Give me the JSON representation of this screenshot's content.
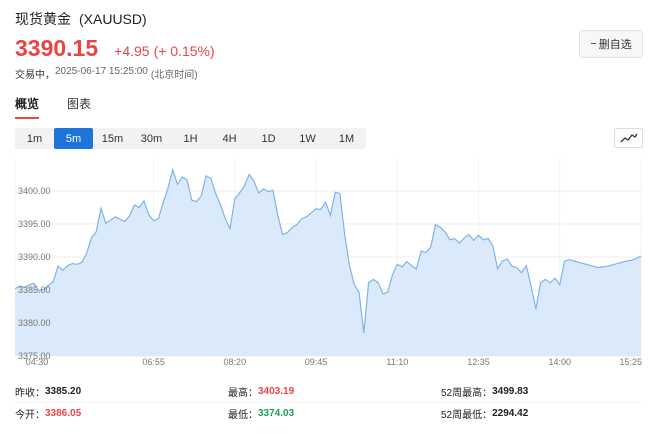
{
  "header": {
    "name": "现货黄金",
    "code": "(XAUUSD)",
    "price": "3390.15",
    "change": "+4.95",
    "change_pct": "(+ 0.15%)",
    "status": "交易中，",
    "timestamp": "2025-06-17 15:25:00",
    "timezone": "(北京时间)",
    "watch_button": "删自选",
    "watch_button_icon": "minus-icon"
  },
  "tabs": [
    {
      "label": "概览",
      "active": true
    },
    {
      "label": "图表",
      "active": false
    }
  ],
  "periods": [
    {
      "label": "1m",
      "active": false
    },
    {
      "label": "5m",
      "active": true
    },
    {
      "label": "15m",
      "active": false
    },
    {
      "label": "30m",
      "active": false
    },
    {
      "label": "1H",
      "active": false
    },
    {
      "label": "4H",
      "active": false
    },
    {
      "label": "1D",
      "active": false
    },
    {
      "label": "1W",
      "active": false
    },
    {
      "label": "1M",
      "active": false
    }
  ],
  "chart_type_icon": "line-chart-icon",
  "colors": {
    "up": "#e84545",
    "down": "#1f9e55",
    "accent": "#1e74d9",
    "line": "#7eb4e8",
    "fill": "#dbeafa"
  },
  "chart_data": {
    "type": "area",
    "ylim": [
      3375,
      3405
    ],
    "y_ticks": [
      "3400.00",
      "3395.00",
      "3390.00",
      "3385.00",
      "3380.00",
      "3375.00"
    ],
    "x_ticks": [
      "04:30",
      "06:55",
      "08:20",
      "09:45",
      "11:10",
      "12:35",
      "14:00",
      "15:25"
    ],
    "grid": true,
    "x": [
      "04:30",
      "04:35",
      "04:40",
      "04:45",
      "04:50",
      "04:55",
      "05:00",
      "05:05",
      "05:10",
      "05:15",
      "05:20",
      "05:25",
      "05:30",
      "05:35",
      "05:40",
      "05:45",
      "05:50",
      "05:55",
      "06:00",
      "06:05",
      "06:10",
      "06:15",
      "06:20",
      "06:25",
      "06:30",
      "06:35",
      "06:40",
      "06:45",
      "06:50",
      "06:55",
      "07:00",
      "07:05",
      "07:10",
      "07:15",
      "07:20",
      "07:25",
      "07:30",
      "07:35",
      "07:40",
      "07:45",
      "07:50",
      "07:55",
      "08:00",
      "08:05",
      "08:10",
      "08:15",
      "08:20",
      "08:25",
      "08:30",
      "08:35",
      "08:40",
      "08:45",
      "08:50",
      "08:55",
      "09:00",
      "09:05",
      "09:10",
      "09:15",
      "09:20",
      "09:25",
      "09:30",
      "09:35",
      "09:40",
      "09:45",
      "09:50",
      "09:55",
      "10:00",
      "10:05",
      "10:10",
      "10:15",
      "10:20",
      "10:25",
      "10:30",
      "10:35",
      "10:40",
      "10:45",
      "10:50",
      "10:55",
      "11:00",
      "11:05",
      "11:10",
      "11:15",
      "11:20",
      "11:25",
      "11:30",
      "11:35",
      "11:40",
      "11:45",
      "11:50",
      "11:55",
      "12:00",
      "12:05",
      "12:10",
      "12:15",
      "12:20",
      "12:25",
      "12:30",
      "12:35",
      "12:40",
      "12:45",
      "12:50",
      "12:55",
      "13:00",
      "13:05",
      "13:10",
      "13:15",
      "13:20",
      "13:25",
      "13:30",
      "13:35",
      "13:40",
      "13:45",
      "13:50",
      "13:55",
      "14:00",
      "14:05",
      "14:10",
      "14:15",
      "14:20",
      "14:25",
      "14:30",
      "14:35",
      "14:40",
      "14:45",
      "14:50",
      "14:55",
      "15:00",
      "15:05",
      "15:10",
      "15:15",
      "15:20",
      "15:25"
    ],
    "values": [
      3385.2,
      3385.6,
      3385.4,
      3385.8,
      3386.0,
      3384.9,
      3385.1,
      3385.7,
      3386.3,
      3388.6,
      3388.0,
      3388.7,
      3389.0,
      3388.9,
      3389.2,
      3390.6,
      3392.9,
      3393.8,
      3397.4,
      3395.1,
      3395.6,
      3396.1,
      3395.7,
      3395.4,
      3396.3,
      3397.9,
      3397.5,
      3398.5,
      3396.4,
      3395.5,
      3395.8,
      3398.2,
      3400.4,
      3403.2,
      3401.0,
      3402.1,
      3401.7,
      3398.6,
      3398.4,
      3399.3,
      3402.3,
      3401.9,
      3399.6,
      3397.9,
      3395.8,
      3394.3,
      3398.8,
      3399.7,
      3400.8,
      3402.5,
      3401.5,
      3399.7,
      3400.3,
      3399.9,
      3400.1,
      3396.3,
      3393.4,
      3393.7,
      3394.5,
      3394.9,
      3395.8,
      3396.1,
      3396.7,
      3397.3,
      3397.2,
      3398.3,
      3396.3,
      3399.8,
      3399.6,
      3393.4,
      3388.7,
      3385.8,
      3384.6,
      3378.5,
      3386.1,
      3386.6,
      3386.1,
      3384.4,
      3384.7,
      3387.3,
      3388.9,
      3388.5,
      3389.3,
      3388.7,
      3388.2,
      3390.9,
      3390.7,
      3391.5,
      3394.9,
      3394.5,
      3393.8,
      3392.6,
      3392.8,
      3392.1,
      3392.9,
      3393.4,
      3392.5,
      3393.3,
      3392.6,
      3392.8,
      3391.7,
      3388.2,
      3389.4,
      3389.7,
      3388.6,
      3388.4,
      3387.6,
      3388.7,
      3385.6,
      3382.1,
      3386.1,
      3386.6,
      3386.1,
      3386.8,
      3385.8,
      3389.4,
      3389.6,
      3389.4,
      3389.2,
      3389.0,
      3388.8,
      3388.6,
      3388.4,
      3388.5,
      3388.6,
      3388.8,
      3389.0,
      3389.2,
      3389.4,
      3389.5,
      3389.8,
      3390.15
    ]
  },
  "stats": [
    [
      {
        "label": "昨收：",
        "value": "3385.20",
        "color": "none"
      },
      {
        "label": "最高：",
        "value": "3403.19",
        "color": "up"
      },
      {
        "label": "52周最高：",
        "value": "3499.83",
        "color": "none"
      }
    ],
    [
      {
        "label": "今开：",
        "value": "3386.05",
        "color": "up"
      },
      {
        "label": "最低：",
        "value": "3374.03",
        "color": "down"
      },
      {
        "label": "52周最低：",
        "value": "2294.42",
        "color": "none"
      }
    ]
  ]
}
